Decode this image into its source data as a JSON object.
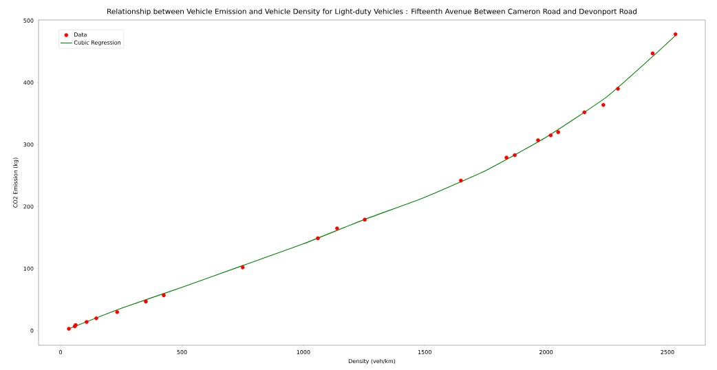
{
  "chart_data": {
    "type": "scatter",
    "title": "Relationship between Vehicle Emission and Vehicle Density for Light-duty Vehicles : Fifteenth Avenue Between Cameron Road and Devonport Road",
    "xlabel": "Density (veh/km)",
    "ylabel": "CO2 Emission (kg)",
    "xlim": [
      -91,
      2656
    ],
    "ylim": [
      -23.5,
      501
    ],
    "xticks": [
      0,
      500,
      1000,
      1500,
      2000,
      2500
    ],
    "yticks": [
      0,
      100,
      200,
      300,
      400,
      500
    ],
    "grid": false,
    "legend": "top left",
    "series": [
      {
        "name": "Data",
        "color": "#ff0000",
        "marker": "circle",
        "x": [
          34,
          58,
          62,
          107,
          147,
          233,
          351,
          425,
          750,
          1060,
          1139,
          1253,
          1649,
          1837,
          1871,
          1967,
          2019,
          2050,
          2158,
          2236,
          2296,
          2439,
          2533
        ],
        "values": [
          3,
          7,
          9,
          14,
          20,
          30,
          47,
          57,
          102,
          149,
          165,
          179,
          242,
          279,
          283,
          307,
          315,
          320,
          352,
          364,
          390,
          447,
          478
        ]
      },
      {
        "name": "Cubic Regression",
        "type": "line",
        "color": "#008000",
        "marker": "none",
        "line_style": "solid",
        "x": [
          34,
          250,
          500,
          750,
          1000,
          1250,
          1500,
          1750,
          2000,
          2250,
          2439,
          2533
        ],
        "values": [
          3,
          36,
          70,
          105,
          140,
          179,
          215,
          258,
          312,
          377,
          442,
          476
        ]
      }
    ]
  }
}
